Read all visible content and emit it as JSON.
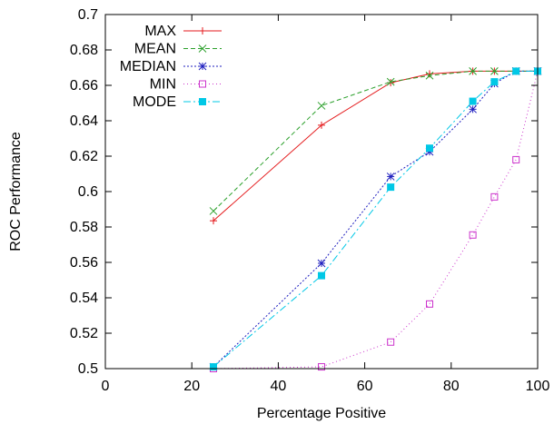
{
  "chart_data": {
    "type": "line",
    "xlabel": "Percentage Positive",
    "ylabel": "ROC Performance",
    "xlim": [
      0,
      100
    ],
    "ylim": [
      0.5,
      0.7
    ],
    "xticks": [
      0,
      20,
      40,
      60,
      80,
      100
    ],
    "yticks": [
      0.5,
      0.52,
      0.54,
      0.56,
      0.58,
      0.6,
      0.62,
      0.64,
      0.66,
      0.68,
      0.7
    ],
    "xtick_labels": [
      "0",
      "20",
      "40",
      "60",
      "80",
      "100"
    ],
    "ytick_labels": [
      "0.5",
      "0.52",
      "0.54",
      "0.56",
      "0.58",
      "0.6",
      "0.62",
      "0.64",
      "0.66",
      "0.68",
      "0.7"
    ],
    "grid": false,
    "legend_position": "top-left",
    "x": [
      25,
      50,
      66,
      75,
      85,
      90,
      95,
      100
    ],
    "series": [
      {
        "name": "MAX",
        "color": "#e41a1c",
        "marker": "plus",
        "dash": "",
        "values": [
          0.5835,
          0.6375,
          0.6615,
          0.6665,
          0.668,
          0.668,
          0.668,
          0.668
        ]
      },
      {
        "name": "MEAN",
        "color": "#2ca02c",
        "marker": "cross",
        "dash": "5,3",
        "values": [
          0.589,
          0.6485,
          0.662,
          0.6655,
          0.668,
          0.668,
          0.668,
          0.668
        ]
      },
      {
        "name": "MEDIAN",
        "color": "#1f1fbf",
        "marker": "asterisk",
        "dash": "2,2",
        "values": [
          0.501,
          0.5595,
          0.6085,
          0.6225,
          0.6465,
          0.661,
          0.668,
          0.668
        ]
      },
      {
        "name": "MIN",
        "color": "#cc33cc",
        "marker": "open-square",
        "dash": "1,3",
        "values": [
          0.5,
          0.501,
          0.515,
          0.5365,
          0.5755,
          0.597,
          0.618,
          0.668
        ]
      },
      {
        "name": "MODE",
        "color": "#00c8e6",
        "marker": "filled-square",
        "dash": "8,3,2,3",
        "values": [
          0.501,
          0.5525,
          0.6025,
          0.6245,
          0.651,
          0.662,
          0.668,
          0.668
        ]
      }
    ]
  }
}
